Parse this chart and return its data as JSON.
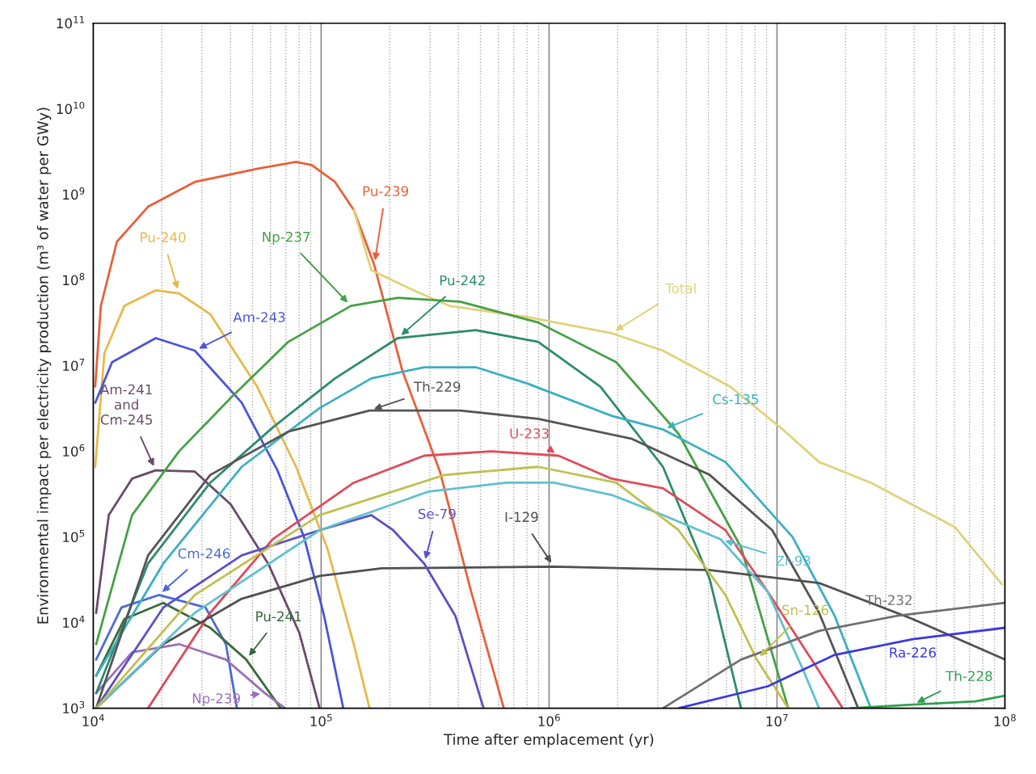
{
  "chart_data": {
    "type": "line",
    "xlabel": "Time after emplacement (yr)",
    "ylabel": "Environmental impact per electricity production (m³ of water per GWy)",
    "log": "xy",
    "grid": "x",
    "xlim": [
      10000,
      100000000
    ],
    "xticks": [
      {
        "value": 10000,
        "label": "10$^{4}$"
      },
      {
        "value": 100000,
        "label": "10$^{5}$"
      },
      {
        "value": 1000000,
        "label": "10$^{6}$"
      },
      {
        "value": 10000000,
        "label": "10$^{7}$"
      },
      {
        "value": 100000000,
        "label": "10$^{8}$"
      }
    ],
    "ylim": [
      1000,
      100000000000
    ],
    "yticks": [
      {
        "value": 1000,
        "label": "10$^{3}$"
      },
      {
        "value": 10000,
        "label": "10$^{4}$"
      },
      {
        "value": 100000,
        "label": "10$^{5}$"
      },
      {
        "value": 1000000,
        "label": "10$^{6}$"
      },
      {
        "value": 10000000,
        "label": "10$^{7}$"
      },
      {
        "value": 100000000,
        "label": "10$^{8}$"
      },
      {
        "value": 1000000000,
        "label": "10$^{9}$"
      },
      {
        "value": 10000000000,
        "label": "10$^{10}$"
      },
      {
        "value": 100000000000,
        "label": "10$^{11}$"
      }
    ],
    "series": [
      {
        "name": "Pu-239",
        "color": "#e8603c",
        "x": [
          10200.0,
          10800.0,
          12700.0,
          17400.0,
          27900.0,
          52400.0,
          77600.0,
          91000.0,
          115000.0,
          139000.0,
          171000.0,
          227000.0,
          332000.0,
          455000.0,
          633000.0
        ],
        "values": [
          5700000.0,
          50000000.0,
          280000000.0,
          720000000.0,
          1400000000.0,
          2000000000.0,
          2400000000.0,
          2200000000.0,
          1400000000.0,
          660000000.0,
          150000000.0,
          8800000.0,
          580000.0,
          23000.0,
          1000.0
        ]
      },
      {
        "name": "Total",
        "color": "#e0d27a",
        "x": [
          139000.0,
          166000.0,
          254000.0,
          365000.0,
          802000.0,
          1880000.0,
          3160000.0,
          6230000.0,
          10600000.0,
          15300000.0,
          25800000.0,
          60400000.0,
          97000000.0
        ],
        "values": [
          660000000.0,
          130000000.0,
          76000000.0,
          50000000.0,
          37000000.0,
          24000000.0,
          15000000.0,
          5700000.0,
          1800000.0,
          750000.0,
          430000.0,
          130000.0,
          28000.0
        ]
      },
      {
        "name": "Pu-240",
        "color": "#e8b84a",
        "x": [
          10200.0,
          11200.0,
          13700.0,
          18800.0,
          23800.0,
          32600.0,
          52400.0,
          77600.0,
          106000.0,
          139000.0,
          163000.0
        ],
        "values": [
          660000.0,
          14000000.0,
          50000000.0,
          76000000.0,
          70000000.0,
          40000000.0,
          5700000.0,
          660000.0,
          76000.0,
          5600.0,
          1000.0
        ]
      },
      {
        "name": "Am-243",
        "color": "#4a55d8",
        "x": [
          10200.0,
          12100.0,
          18800.0,
          27900.0,
          44800.0,
          64300.0,
          84100.0,
          103000.0,
          125000.0
        ],
        "values": [
          3700000.0,
          11000000.0,
          21000000.0,
          15000000.0,
          3700000.0,
          600000.0,
          100000.0,
          12000.0,
          1000.0
        ]
      },
      {
        "name": "Am-241\nand\nCm-245",
        "color": "#6a4a6a",
        "x": [
          10300.0,
          11700.0,
          14800.0,
          18800.0,
          27900.0,
          40100.0,
          58500.0,
          80200.0,
          98400.0
        ],
        "values": [
          13000.0,
          180000.0,
          480000.0,
          600000.0,
          580000.0,
          240000.0,
          49000.0,
          7600.0,
          1000.0
        ]
      },
      {
        "name": "Cm-246",
        "color": "#4a6ad8",
        "x": [
          10300.0,
          13300.0,
          19400.0,
          31100.0,
          38200.0,
          42700.0
        ],
        "values": [
          3700.0,
          15000.0,
          21000.0,
          15000.0,
          5600.0,
          1000.0
        ]
      },
      {
        "name": "Pu-241",
        "color": "#3a6a3a",
        "x": [
          10300.0,
          13700.0,
          20300.0,
          32600.0,
          46900.0,
          66400.0
        ],
        "values": [
          2400.0,
          11000.0,
          17000.0,
          8700.0,
          3700.0,
          1000.0
        ]
      },
      {
        "name": "Np-239",
        "color": "#9a70b8",
        "x": [
          10300.0,
          14800.0,
          23800.0,
          38200.0,
          56600.0,
          69500.0
        ],
        "values": [
          1500.0,
          4500.0,
          5600.0,
          3700.0,
          1500.0,
          1000.0
        ]
      },
      {
        "name": "Np-237",
        "color": "#46a046",
        "x": [
          10300.0,
          14800.0,
          23800.0,
          40100.0,
          71800.0,
          135000.0,
          217000.0,
          407000.0,
          895000.0,
          1970000.0,
          3700000.0,
          6950000.0,
          11200000.0
        ],
        "values": [
          5600.0,
          180000.0,
          1000000.0,
          4200000.0,
          19000000.0,
          50000000.0,
          62000000.0,
          56000000.0,
          32000000.0,
          11000000.0,
          1600000.0,
          76000.0,
          1000.0
        ]
      },
      {
        "name": "Pu-242",
        "color": "#2e8b6e",
        "x": [
          10300.0,
          17400.0,
          32600.0,
          61300.0,
          115000.0,
          217000.0,
          477000.0,
          895000.0,
          1680000.0,
          3160000.0,
          5070000.0,
          6950000.0
        ],
        "values": [
          1500.0,
          49000.0,
          430000.0,
          1900000.0,
          7100000.0,
          21000000.0,
          26000000.0,
          19000000.0,
          5700000.0,
          660000.0,
          32000.0,
          1000.0
        ]
      },
      {
        "name": "Cs-135",
        "color": "#3ab0c0",
        "x": [
          10300.0,
          20300.0,
          44800.0,
          98400.0,
          166000.0,
          283000.0,
          477000.0,
          802000.0,
          1880000.0,
          3160000.0,
          5940000.0,
          11700000.0,
          17900000.0,
          25800000.0
        ],
        "values": [
          2400.0,
          49000.0,
          660000.0,
          3200000.0,
          7100000.0,
          9600000.0,
          9600000.0,
          6200000.0,
          2600000.0,
          1800000.0,
          750000.0,
          100000.0,
          12000.0,
          1000.0
        ]
      },
      {
        "name": "Th-229",
        "color": "#555555",
        "x": [
          10300.0,
          17400.0,
          32600.0,
          71800.0,
          163000.0,
          407000.0,
          895000.0,
          2310000.0,
          5070000.0,
          9530000.0,
          15300000.0,
          22700000.0
        ],
        "values": [
          1000.0,
          61000.0,
          530000.0,
          1700000.0,
          3000000.0,
          3000000.0,
          2400000.0,
          1400000.0,
          530000.0,
          120000.0,
          13000.0,
          1000.0
        ]
      },
      {
        "name": "U-233",
        "color": "#e04a5a",
        "x": [
          17400.0,
          32600.0,
          61300.0,
          139000.0,
          283000.0,
          558000.0,
          1100000.0,
          1880000.0,
          3160000.0,
          5940000.0,
          9100000.0,
          15300000.0,
          19400000.0
        ],
        "values": [
          1000.0,
          13000.0,
          94000.0,
          430000.0,
          890000.0,
          1000000.0,
          890000.0,
          480000.0,
          370000.0,
          120000.0,
          23000.0,
          2700.0,
          1000.0
        ]
      },
      {
        "name": "I-129",
        "color": "#505050",
        "x": [
          10300.0,
          20300.0,
          44800.0,
          98400.0,
          185000.0,
          1050000.0,
          5070000.0,
          15300000.0,
          39400000.0,
          100000000.0
        ],
        "values": [
          1000.0,
          5600.0,
          19000.0,
          35000.0,
          43000.0,
          45000.0,
          41000.0,
          29000.0,
          11000.0,
          3700.0
        ]
      },
      {
        "name": "Se-79",
        "color": "#5a50c8",
        "x": [
          10300.0,
          20300.0,
          44800.0,
          98400.0,
          166000.0,
          207000.0,
          283000.0,
          388000.0,
          516000.0
        ],
        "values": [
          1000.0,
          15000.0,
          61000.0,
          120000.0,
          180000.0,
          120000.0,
          49000.0,
          12000.0,
          1000.0
        ]
      },
      {
        "name": "Zr-93",
        "color": "#60c0d0",
        "x": [
          10300.0,
          27900.0,
          98400.0,
          297000.0,
          653000.0,
          1050000.0,
          1880000.0,
          3160000.0,
          5660000.0,
          9100000.0,
          13100000.0,
          15300000.0
        ],
        "values": [
          1000.0,
          13000.0,
          120000.0,
          340000.0,
          430000.0,
          430000.0,
          310000.0,
          180000.0,
          94000.0,
          23000.0,
          2700.0,
          1000.0
        ]
      },
      {
        "name": "Sn-126",
        "color": "#c0c050",
        "x": [
          10300.0,
          27900.0,
          98400.0,
          348000.0,
          895000.0,
          1970000.0,
          3700000.0,
          5940000.0,
          8150000.0,
          11200000.0
        ],
        "values": [
          1000.0,
          21000.0,
          180000.0,
          530000.0,
          660000.0,
          430000.0,
          120000.0,
          21000.0,
          3700.0,
          1000.0
        ]
      },
      {
        "name": "Th-232",
        "color": "#707070",
        "x": [
          3160000.0,
          6950000.0,
          15300000.0,
          33700000.0,
          100000000.0
        ],
        "values": [
          1000.0,
          3700.0,
          8000.0,
          12000.0,
          17000.0
        ]
      },
      {
        "name": "Ra-226",
        "color": "#3a3ae0",
        "x": [
          3700000.0,
          9100000.0,
          17900000.0,
          39400000.0,
          100000000.0
        ],
        "values": [
          1000.0,
          1800.0,
          4200.0,
          6400.0,
          8700.0
        ]
      },
      {
        "name": "Th-228",
        "color": "#30a050",
        "x": [
          21000000.0,
          39400000.0,
          74100000.0,
          100000000.0
        ],
        "values": [
          1000.0,
          1100.0,
          1200.0,
          1400.0
        ]
      }
    ]
  }
}
